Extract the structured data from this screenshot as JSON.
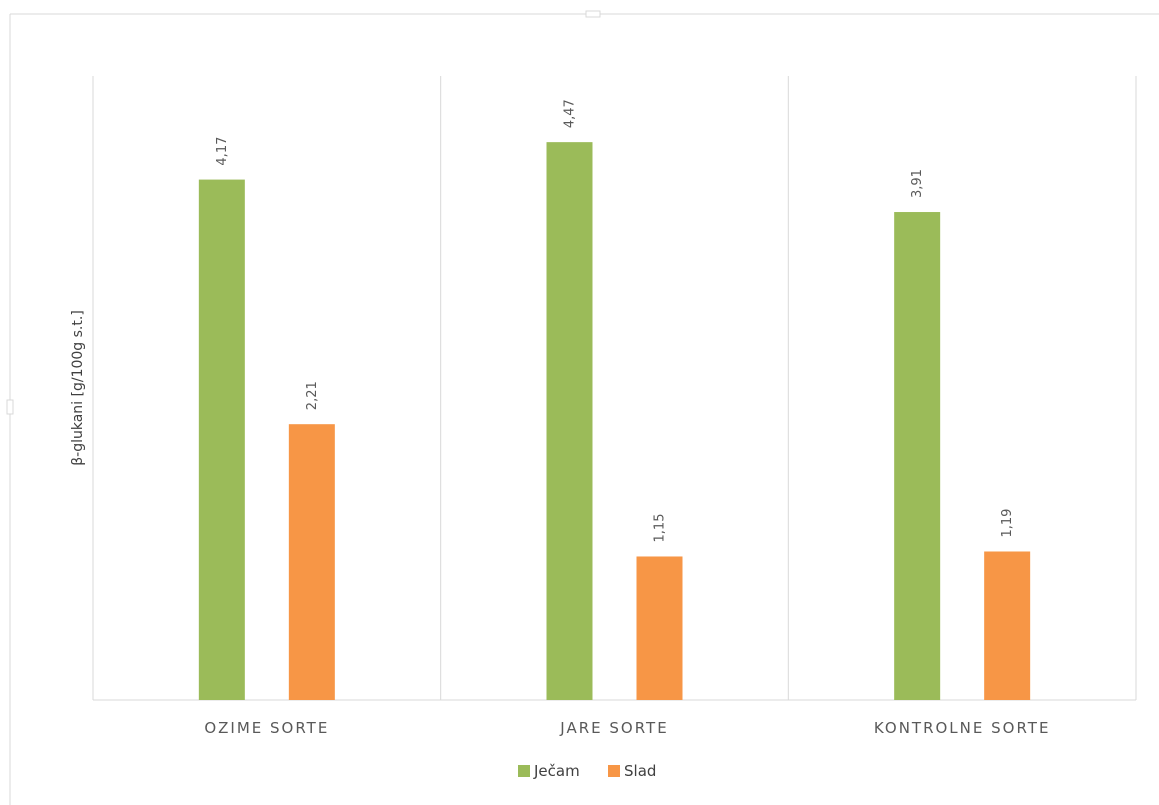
{
  "chart_data": {
    "type": "bar",
    "categories": [
      "OZIME SORTE",
      "JARE SORTE",
      "KONTROLNE SORTE"
    ],
    "series": [
      {
        "name": "Ječam",
        "values": [
          4.17,
          4.47,
          3.91
        ],
        "labels": [
          "4,17",
          "4,47",
          "3,91"
        ],
        "color": "#9bbb59"
      },
      {
        "name": "Slad",
        "values": [
          2.21,
          1.15,
          1.19
        ],
        "labels": [
          "2,21",
          "1,15",
          "1,19"
        ],
        "color": "#f79646"
      }
    ],
    "ylabel": "β-glukani [g/100g s.t.]",
    "ylim": [
      0,
      5
    ],
    "grid": "vertical category separators",
    "legend": "bottom-center"
  }
}
